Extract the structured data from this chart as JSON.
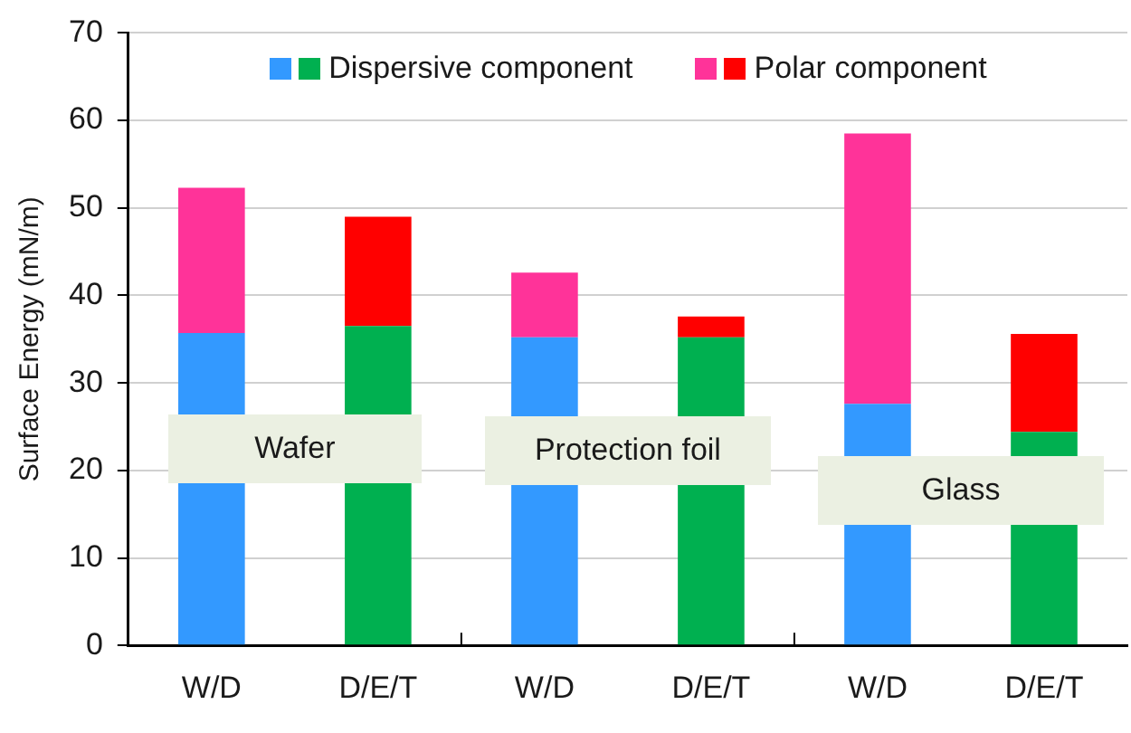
{
  "chart_data": {
    "type": "bar",
    "stacked": true,
    "ylabel": "Surface Energy (mN/m)",
    "categories": [
      "W/D",
      "D/E/T",
      "W/D",
      "D/E/T",
      "W/D",
      "D/E/T"
    ],
    "series": [
      {
        "name": "Dispersive component",
        "colors": [
          "#3399ff",
          "#00b050",
          "#3399ff",
          "#00b050",
          "#3399ff",
          "#00b050"
        ],
        "values": [
          35.7,
          36.5,
          35.2,
          35.2,
          27.6,
          24.4
        ]
      },
      {
        "name": "Polar component",
        "colors": [
          "#ff3399",
          "#ff0000",
          "#ff3399",
          "#ff0000",
          "#ff3399",
          "#ff0000"
        ],
        "values": [
          16.6,
          12.5,
          7.4,
          2.4,
          30.9,
          11.2
        ]
      }
    ],
    "annotations": [
      "Wafer",
      "Protection foil",
      "Glass"
    ],
    "ylim": [
      0,
      70
    ],
    "yticks": [
      0,
      10,
      20,
      30,
      40,
      50,
      60,
      70
    ],
    "grid": "y",
    "legend": "top"
  }
}
